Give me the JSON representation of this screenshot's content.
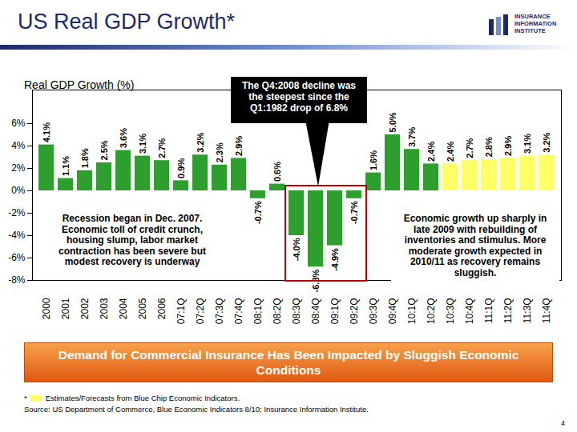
{
  "chart_data": {
    "type": "bar",
    "title": "US Real GDP Growth*",
    "subtitle": "Real GDP Growth (%)",
    "categories": [
      "2000",
      "2001",
      "2002",
      "2003",
      "2004",
      "2005",
      "2006",
      "07:1Q",
      "07:2Q",
      "07:3Q",
      "07:4Q",
      "08:1Q",
      "08:2Q",
      "08:3Q",
      "08:4Q",
      "09:1Q",
      "09:2Q",
      "09:3Q",
      "09:4Q",
      "10:1Q",
      "10:2Q",
      "10:3Q",
      "10:4Q",
      "11:1Q",
      "11:2Q",
      "11:3Q",
      "11:4Q"
    ],
    "values": [
      4.1,
      1.1,
      1.8,
      2.5,
      3.6,
      3.1,
      2.7,
      0.9,
      3.2,
      2.3,
      2.9,
      -0.7,
      0.6,
      -4.0,
      -6.8,
      -4.9,
      -0.7,
      1.6,
      5.0,
      3.7,
      2.4,
      2.4,
      2.7,
      2.8,
      2.9,
      3.1,
      3.2
    ],
    "value_labels": [
      "4.1%",
      "1.1%",
      "1.8%",
      "2.5%",
      "3.6%",
      "3.1%",
      "2.7%",
      "0.9%",
      "3.2%",
      "2.3%",
      "2.9%",
      "-0.7%",
      "0.6%",
      "-4.0%",
      "-6.8%",
      "-4.9%",
      "-0.7%",
      "1.6%",
      "5.0%",
      "3.7%",
      "2.4%",
      "2.4%",
      "2.7%",
      "2.8%",
      "2.9%",
      "3.1%",
      "3.2%"
    ],
    "colors": [
      "#2e9e2e",
      "#2e9e2e",
      "#2e9e2e",
      "#2e9e2e",
      "#2e9e2e",
      "#2e9e2e",
      "#2e9e2e",
      "#2e9e2e",
      "#2e9e2e",
      "#2e9e2e",
      "#2e9e2e",
      "#2e9e2e",
      "#2e9e2e",
      "#2e9e2e",
      "#2e9e2e",
      "#2e9e2e",
      "#2e9e2e",
      "#2e9e2e",
      "#2e9e2e",
      "#2e9e2e",
      "#2e9e2e",
      "#ffff66",
      "#ffff66",
      "#ffff66",
      "#ffff66",
      "#ffff66",
      "#ffff66"
    ],
    "ylim": [
      -8,
      9
    ],
    "yticks": [
      {
        "value": -8,
        "label": "-8%"
      },
      {
        "value": -6,
        "label": "-6%"
      },
      {
        "value": -4,
        "label": "-4%"
      },
      {
        "value": -2,
        "label": "-2%"
      },
      {
        "value": 0,
        "label": "0%"
      },
      {
        "value": 2,
        "label": "2%"
      },
      {
        "value": 4,
        "label": "4%"
      },
      {
        "value": 6,
        "label": "6%"
      }
    ],
    "grid": false,
    "data_labels": true,
    "annotations": [
      "The Q4:2008 decline was the steepest since the Q1:1982 drop of 6.8%",
      "Recession began in Dec. 2007. Economic toll of credit crunch, housing slump, labor market contraction has been severe but modest recovery is underway",
      "Economic growth up sharply in late 2009 with rebuilding of inventories and stimulus. More moderate growth expected in 2010/11 as recovery remains sluggish."
    ],
    "banner": "Demand for Commercial Insurance Has Been Impacted by Sluggish Economic Conditions",
    "footnote_marker": "*",
    "footnote": "Estimates/Forecasts from Blue Chip Economic Indicators.",
    "source": "Source: US Department of Commerce, Blue Economic Indicators 8/10; Insurance Information Institute.",
    "logo": [
      "INSURANCE",
      "INFORMATION",
      "INSTITUTE"
    ],
    "page_number": 4
  }
}
